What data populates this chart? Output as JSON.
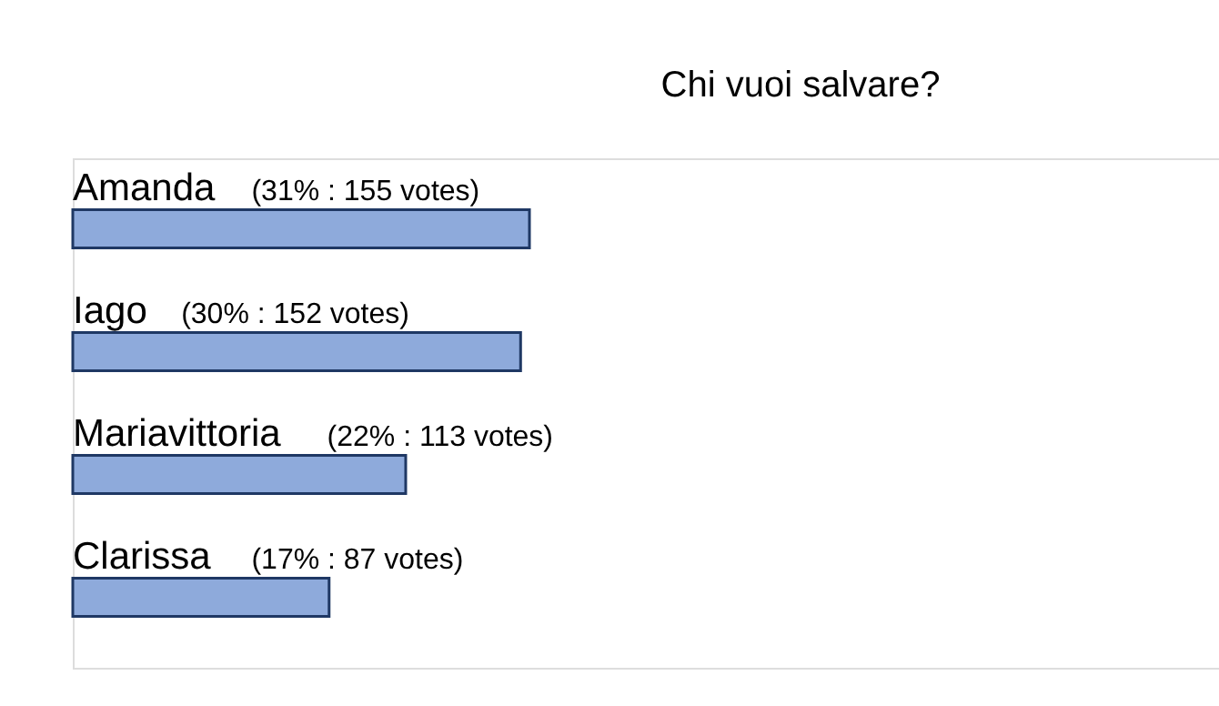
{
  "chart_data": {
    "type": "bar",
    "orientation": "horizontal",
    "title": "Chi vuoi salvare?",
    "categories": [
      "Amanda",
      "Iago",
      "Mariavittoria",
      "Clarissa"
    ],
    "values": [
      155,
      152,
      113,
      87
    ],
    "value_labels": [
      "(31% : 155 votes)",
      "(30% : 152 votes)",
      "(22% : 113 votes)",
      "(17% : 87 votes)"
    ],
    "color": "#8eaadb",
    "grid": false
  }
}
